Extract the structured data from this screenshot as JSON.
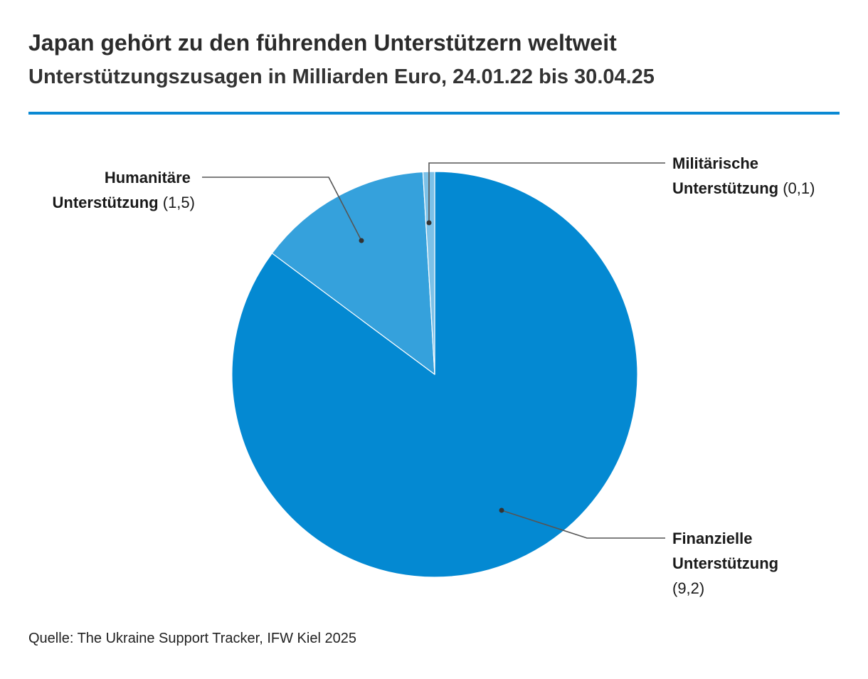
{
  "title": "Japan gehört zu den führenden Unterstützern weltweit",
  "subtitle": "Unterstützungszusagen in Milliarden Euro, 24.01.22 bis 30.04.25",
  "source": "Quelle: The Ukraine Support Tracker, IFW Kiel 2025",
  "colors": {
    "accent_rule": "#0a89d3",
    "leader_line": "#555555"
  },
  "chart_data": {
    "type": "pie",
    "title": "Japan gehört zu den führenden Unterstützern weltweit",
    "subtitle": "Unterstützungszusagen in Milliarden Euro, 24.01.22 bis 30.04.25",
    "start": "12-o-clock",
    "direction": "clockwise",
    "slices": [
      {
        "key": "financial",
        "label_lines": [
          "Finanzielle",
          "Unterstützung"
        ],
        "value": 9.2,
        "value_label": "(9,2)",
        "color": "#0489d2"
      },
      {
        "key": "humanitarian",
        "label_lines": [
          "Humanitäre",
          "Unterstützung"
        ],
        "value": 1.5,
        "value_label": "(1,5)",
        "color": "#35a1dc"
      },
      {
        "key": "military",
        "label_lines": [
          "Militärische",
          "Unterstützung"
        ],
        "value": 0.1,
        "value_label": "(0,1)",
        "color": "#7cc1e8"
      }
    ]
  }
}
